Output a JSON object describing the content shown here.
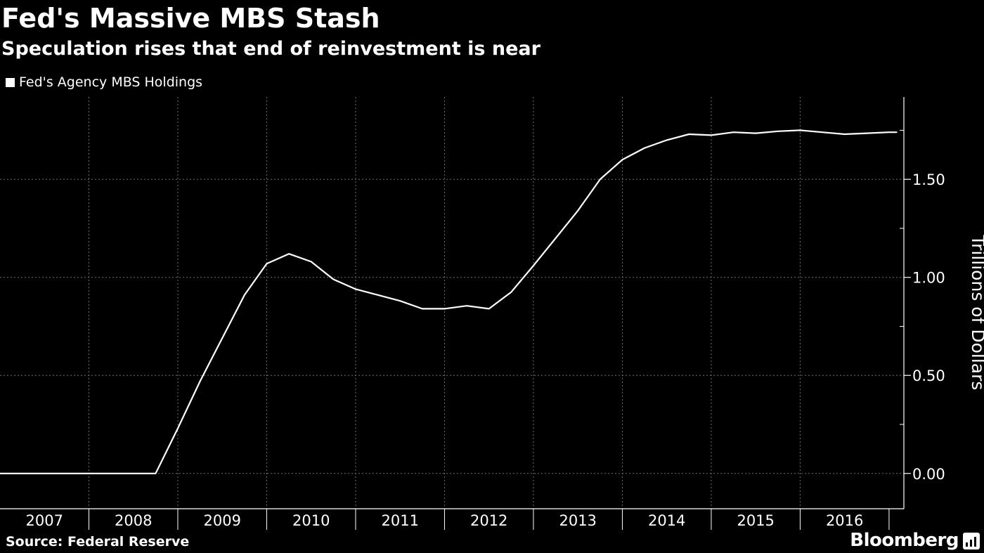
{
  "header": {
    "title": "Fed's Massive MBS Stash",
    "subtitle": "Speculation rises that end of reinvestment is near"
  },
  "footer": {
    "source": "Source: Federal Reserve",
    "brand": "Bloomberg"
  },
  "colors": {
    "background": "#000000",
    "line": "#ffffff",
    "grid": "#6e6e6e"
  },
  "chart_data": {
    "type": "line",
    "title": "Fed's Massive MBS Stash",
    "subtitle": "Speculation rises that end of reinvestment is near",
    "ylabel": "Trillions of Dollars",
    "xlabel": "",
    "ylim": [
      -0.18,
      1.92
    ],
    "xlim": [
      "2007-01-01",
      "2017-03-01"
    ],
    "y_ticks": [
      "0.00",
      "0.50",
      "1.00",
      "1.50"
    ],
    "y_tick_values": [
      0,
      0.5,
      1.0,
      1.5
    ],
    "x_tick_labels": [
      "2007",
      "2008",
      "2009",
      "2010",
      "2011",
      "2012",
      "2013",
      "2014",
      "2015",
      "2016"
    ],
    "x_tick_years": [
      2007,
      2008,
      2009,
      2010,
      2011,
      2012,
      2013,
      2014,
      2015,
      2016
    ],
    "grid": true,
    "legend_position": "top-left",
    "series": [
      {
        "name": "Fed's Agency MBS Holdings",
        "x": [
          "2007-01",
          "2007-06",
          "2008-01",
          "2008-06",
          "2008-10",
          "2009-01",
          "2009-04",
          "2009-07",
          "2009-10",
          "2010-01",
          "2010-04",
          "2010-07",
          "2010-10",
          "2011-01",
          "2011-04",
          "2011-07",
          "2011-10",
          "2012-01",
          "2012-04",
          "2012-07",
          "2012-10",
          "2013-01",
          "2013-04",
          "2013-07",
          "2013-10",
          "2014-01",
          "2014-04",
          "2014-07",
          "2014-10",
          "2015-01",
          "2015-04",
          "2015-07",
          "2015-10",
          "2016-01",
          "2016-04",
          "2016-07",
          "2016-10",
          "2017-01",
          "2017-02"
        ],
        "values": [
          0,
          0,
          0,
          0,
          0,
          0.23,
          0.47,
          0.69,
          0.91,
          1.07,
          1.12,
          1.08,
          0.99,
          0.94,
          0.91,
          0.88,
          0.84,
          0.84,
          0.855,
          0.84,
          0.925,
          1.06,
          1.2,
          1.34,
          1.5,
          1.6,
          1.66,
          1.7,
          1.73,
          1.725,
          1.74,
          1.735,
          1.745,
          1.75,
          1.74,
          1.73,
          1.735,
          1.74,
          1.74
        ]
      }
    ]
  }
}
